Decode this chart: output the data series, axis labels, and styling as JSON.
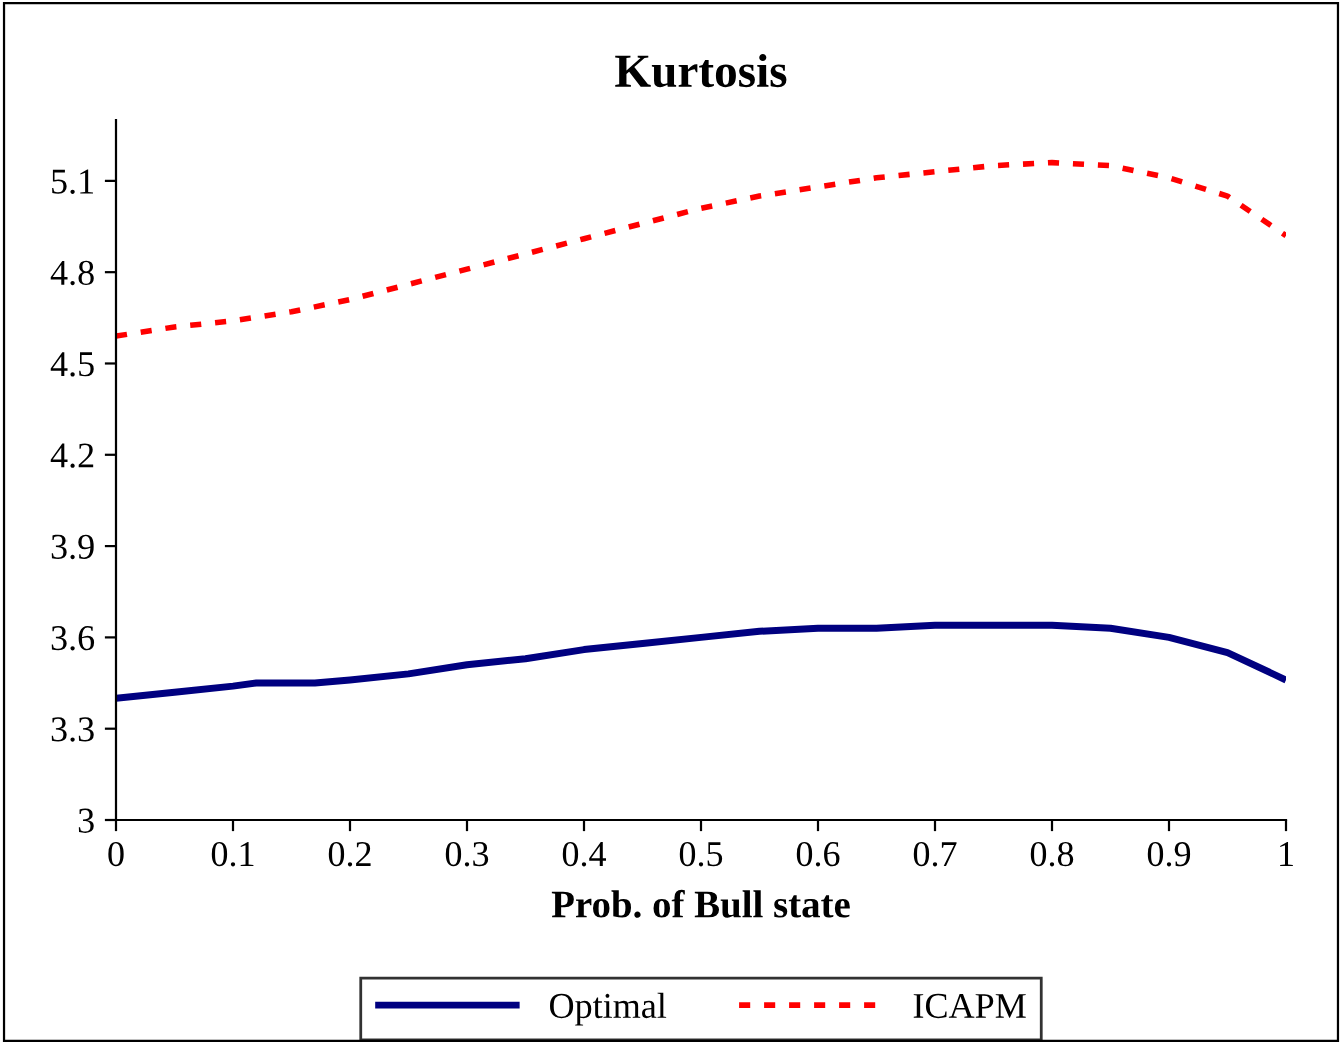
{
  "chart_data": {
    "type": "line",
    "title": "Kurtosis",
    "xlabel": "Prob. of Bull state",
    "xlim": [
      0,
      1
    ],
    "xticks": [
      0,
      0.1,
      0.2,
      0.3,
      0.4,
      0.5,
      0.6,
      0.7,
      0.8,
      0.9,
      1
    ],
    "ylim": [
      3,
      5.3
    ],
    "yticks": [
      3,
      3.3,
      3.6,
      3.9,
      4.2,
      4.5,
      4.8,
      5.1
    ],
    "grid": false,
    "legend": "bottom",
    "marker": "none",
    "series": [
      {
        "name": "Optimal",
        "color": "#000080",
        "line_style": "solid",
        "x": [
          0,
          0.05,
          0.1,
          0.12,
          0.17,
          0.2,
          0.25,
          0.3,
          0.35,
          0.4,
          0.45,
          0.5,
          0.55,
          0.6,
          0.65,
          0.7,
          0.75,
          0.8,
          0.85,
          0.9,
          0.95,
          1
        ],
        "values": [
          3.4,
          3.42,
          3.44,
          3.45,
          3.45,
          3.46,
          3.48,
          3.51,
          3.53,
          3.56,
          3.58,
          3.6,
          3.62,
          3.63,
          3.63,
          3.64,
          3.64,
          3.64,
          3.63,
          3.6,
          3.55,
          3.46
        ]
      },
      {
        "name": "ICAPM",
        "color": "#ff0000",
        "line_style": "dotted",
        "x": [
          0,
          0.05,
          0.1,
          0.15,
          0.2,
          0.25,
          0.3,
          0.35,
          0.4,
          0.45,
          0.5,
          0.55,
          0.6,
          0.65,
          0.7,
          0.75,
          0.8,
          0.85,
          0.9,
          0.95,
          1
        ],
        "values": [
          4.59,
          4.62,
          4.64,
          4.67,
          4.71,
          4.76,
          4.81,
          4.86,
          4.91,
          4.96,
          5.01,
          5.05,
          5.08,
          5.11,
          5.13,
          5.15,
          5.16,
          5.15,
          5.11,
          5.05,
          4.92
        ]
      }
    ]
  }
}
